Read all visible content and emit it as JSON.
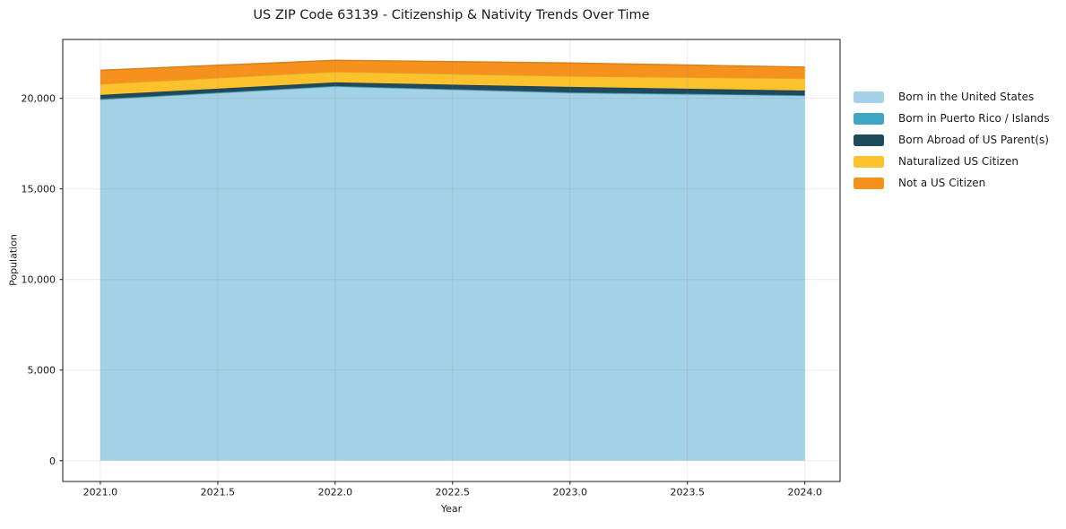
{
  "figure": {
    "background": "#ffffff"
  },
  "chart_data": {
    "type": "area",
    "stacked": true,
    "title": "US ZIP Code 63139 - Citizenship & Nativity Trends Over Time",
    "xlabel": "Year",
    "ylabel": "Population",
    "x": [
      2021,
      2022,
      2023,
      2024
    ],
    "series": [
      {
        "name": "Born in the United States",
        "color": "#a3d1e5",
        "values": [
          19930,
          20650,
          20300,
          20150
        ]
      },
      {
        "name": "Born in Puerto Rico / Islands",
        "color": "#3fa5c5",
        "values": [
          30,
          30,
          30,
          20
        ]
      },
      {
        "name": "Born Abroad of US Parent(s)",
        "color": "#1f4a5c",
        "values": [
          230,
          200,
          300,
          260
        ]
      },
      {
        "name": "Naturalized US Citizen",
        "color": "#fcc22d",
        "values": [
          600,
          590,
          600,
          670
        ]
      },
      {
        "name": "Not a US Citizen",
        "color": "#f6911e",
        "values": [
          760,
          630,
          720,
          620
        ]
      }
    ],
    "xlim": [
      2020.84,
      2024.15
    ],
    "ylim": [
      -1150,
      23250
    ],
    "xtick_values": [
      2021.0,
      2021.5,
      2022.0,
      2022.5,
      2023.0,
      2023.5,
      2024.0
    ],
    "xtick_labels": [
      "2021.0",
      "2021.5",
      "2022.0",
      "2022.5",
      "2023.0",
      "2023.5",
      "2024.0"
    ],
    "ytick_values": [
      0,
      5000,
      10000,
      15000,
      20000
    ],
    "ytick_labels": [
      "0",
      "5,000",
      "10,000",
      "15,000",
      "20,000"
    ],
    "grid": true,
    "legend_position": "right"
  },
  "colors": {
    "spine": "#1a1a1a",
    "tick_label": "#1a1a1a",
    "grid": "rgba(128,128,128,0.16)"
  }
}
